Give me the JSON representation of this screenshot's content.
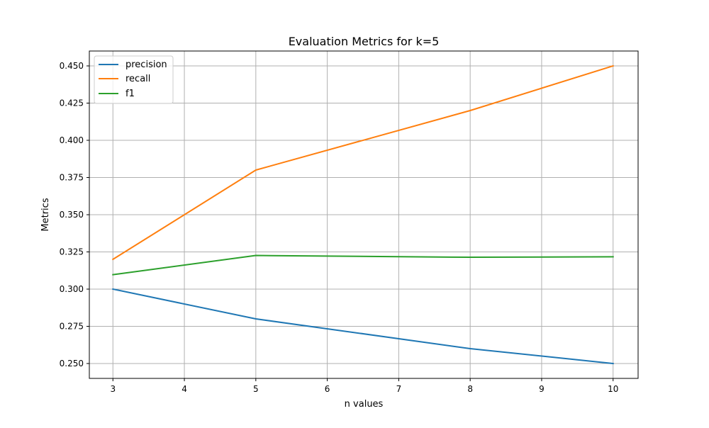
{
  "chart_data": {
    "type": "line",
    "title": "Evaluation Metrics for k=5",
    "xlabel": "n values",
    "ylabel": "Metrics",
    "x": [
      3,
      5,
      8,
      10
    ],
    "xticks": [
      3,
      4,
      5,
      6,
      7,
      8,
      9,
      10
    ],
    "xtick_labels": [
      "3",
      "4",
      "5",
      "6",
      "7",
      "8",
      "9",
      "10"
    ],
    "yticks": [
      0.25,
      0.275,
      0.3,
      0.325,
      0.35,
      0.375,
      0.4,
      0.425,
      0.45
    ],
    "ytick_labels": [
      "0.250",
      "0.275",
      "0.300",
      "0.325",
      "0.350",
      "0.375",
      "0.400",
      "0.425",
      "0.450"
    ],
    "xlim": [
      2.67,
      10.35
    ],
    "ylim": [
      0.24,
      0.46
    ],
    "grid": true,
    "legend_position": "top-left",
    "series": [
      {
        "name": "precision",
        "color": "#1f77b4",
        "values": [
          0.3,
          0.28,
          0.26,
          0.25
        ]
      },
      {
        "name": "recall",
        "color": "#ff7f0e",
        "values": [
          0.32,
          0.38,
          0.42,
          0.45
        ]
      },
      {
        "name": "f1",
        "color": "#2ca02c",
        "values": [
          0.3097,
          0.3226,
          0.3214,
          0.3217
        ]
      }
    ]
  }
}
